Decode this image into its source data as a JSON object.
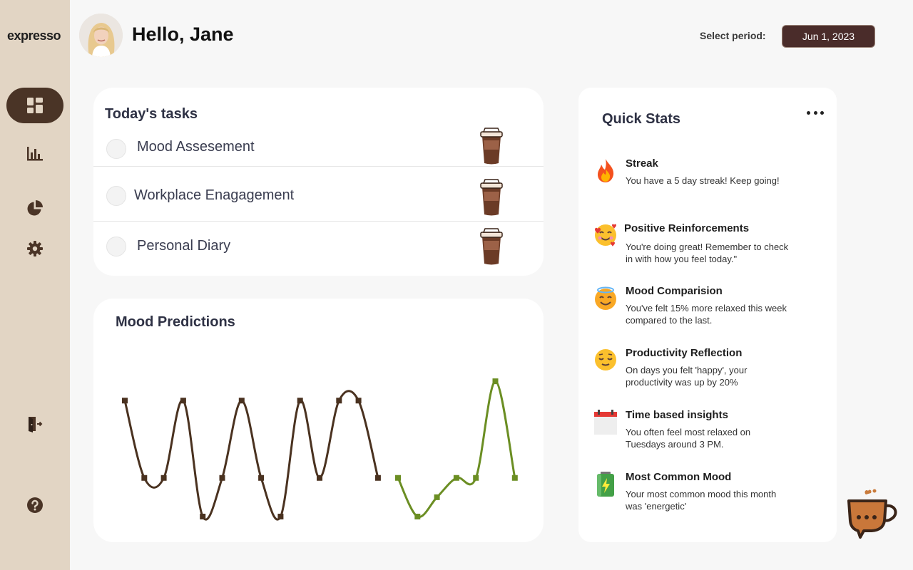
{
  "app": {
    "logo": "expresso"
  },
  "sidebar": {
    "items": [
      {
        "name": "dashboard",
        "icon": "dashboard-icon",
        "active": true
      },
      {
        "name": "analytics",
        "icon": "bar-chart-icon",
        "active": false
      },
      {
        "name": "reports",
        "icon": "pie-chart-icon",
        "active": false
      },
      {
        "name": "settings",
        "icon": "gear-icon",
        "active": false
      },
      {
        "name": "logout",
        "icon": "logout-icon",
        "active": false
      },
      {
        "name": "help",
        "icon": "help-icon",
        "active": false
      }
    ]
  },
  "header": {
    "greeting": "Hello, Jane",
    "period_label": "Select period:",
    "period_value": "Jun 1, 2023"
  },
  "tasks": {
    "title": "Today's tasks",
    "items": [
      {
        "label": "Mood Assesement",
        "icon": "coffee-cup-icon"
      },
      {
        "label": "Workplace Enagagement",
        "icon": "coffee-cup-icon"
      },
      {
        "label": "Personal Diary",
        "icon": "coffee-cup-icon"
      }
    ]
  },
  "mood": {
    "title": "Mood Predictions",
    "colors": {
      "past": "#4a3220",
      "predicted": "#6b8e23"
    }
  },
  "chart_data": {
    "type": "line",
    "title": "Mood Predictions",
    "xlabel": "",
    "ylabel": "",
    "grid": false,
    "axes_visible": false,
    "ylim": [
      0,
      4
    ],
    "series": [
      {
        "values": [
          3,
          1,
          1,
          3,
          0,
          1,
          3,
          1,
          0,
          3,
          1,
          3,
          3,
          1
        ]
      },
      {
        "values": [
          1,
          0,
          0.5,
          1,
          1,
          3.5,
          1
        ]
      }
    ]
  },
  "quick_stats": {
    "title": "Quick Stats",
    "menu_icon": "more-dots-icon",
    "items": [
      {
        "icon": "fire-icon",
        "title": "Streak",
        "text": "You have a 5 day streak! Keep going!"
      },
      {
        "icon": "smiling-face-with-hearts-icon",
        "title": "Positive Reinforcements",
        "text": "You're doing great! Remember to check in with how you feel today.\""
      },
      {
        "icon": "smiling-face-with-halo-icon",
        "title": "Mood Comparision",
        "text": "You've felt 15% more relaxed this week compared to the last."
      },
      {
        "icon": "relieved-face-icon",
        "title": "Productivity Reflection",
        "text": "On days you felt 'happy', your productivity was up by 20%"
      },
      {
        "icon": "calendar-icon",
        "title": "Time based insights",
        "text": "You often feel most relaxed on Tuesdays around 3 PM."
      },
      {
        "icon": "battery-icon",
        "title": "Most Common Mood",
        "text": "Your most common mood this month was 'energetic'"
      }
    ]
  },
  "chat": {
    "icon": "coffee-chat-icon"
  }
}
